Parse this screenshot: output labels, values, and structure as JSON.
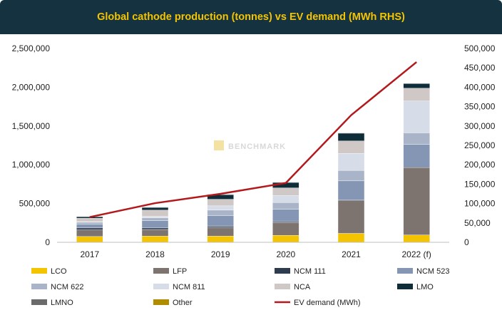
{
  "chart_data": {
    "type": "bar",
    "stacked": true,
    "title": "Global cathode production (tonnes) vs EV demand (MWh RHS)",
    "categories": [
      "2017",
      "2018",
      "2019",
      "2020",
      "2021",
      "2022 (f)"
    ],
    "ylim": [
      0,
      2500000
    ],
    "y2lim": [
      0,
      500000
    ],
    "yticks": [
      "0",
      "500,000",
      "1,000,000",
      "1,500,000",
      "2,000,000",
      "2,500,000"
    ],
    "y2ticks": [
      "0",
      "50,000",
      "100,000",
      "150,000",
      "200,000",
      "250,000",
      "300,000",
      "350,000",
      "400,000",
      "450,000",
      "500,000"
    ],
    "series": [
      {
        "name": "LCO",
        "color": "#f5c400",
        "values": [
          75000,
          80000,
          80000,
          90000,
          115000,
          95000
        ]
      },
      {
        "name": "LFP",
        "color": "#7d7470",
        "values": [
          85000,
          85000,
          110000,
          165000,
          420000,
          865000
        ]
      },
      {
        "name": "NCM 111",
        "color": "#2f3b4f",
        "values": [
          25000,
          20000,
          15000,
          12000,
          12000,
          12000
        ]
      },
      {
        "name": "NCM 523",
        "color": "#8496b3",
        "values": [
          50000,
          95000,
          140000,
          160000,
          245000,
          290000
        ]
      },
      {
        "name": "NCM 622",
        "color": "#a9b4c8",
        "values": [
          25000,
          35000,
          70000,
          85000,
          135000,
          150000
        ]
      },
      {
        "name": "NCM 811",
        "color": "#d7dde8",
        "values": [
          5000,
          20000,
          55000,
          90000,
          220000,
          410000
        ]
      },
      {
        "name": "NCA",
        "color": "#cfc8c6",
        "values": [
          45000,
          80000,
          85000,
          100000,
          160000,
          165000
        ]
      },
      {
        "name": "LMO",
        "color": "#0f2d38",
        "values": [
          20000,
          35000,
          60000,
          70000,
          100000,
          60000
        ]
      },
      {
        "name": "LMNO",
        "color": "#6b6b6b",
        "values": [
          5000,
          5000,
          5000,
          5000,
          5000,
          5000
        ]
      },
      {
        "name": "Other",
        "color": "#b08c00",
        "values": [
          0,
          0,
          0,
          0,
          0,
          0
        ]
      }
    ],
    "line": {
      "name": "EV demand (MWh)",
      "color": "#b3191c",
      "axis": "right",
      "values": [
        65000,
        101000,
        125000,
        153000,
        328000,
        465000
      ]
    }
  }
}
